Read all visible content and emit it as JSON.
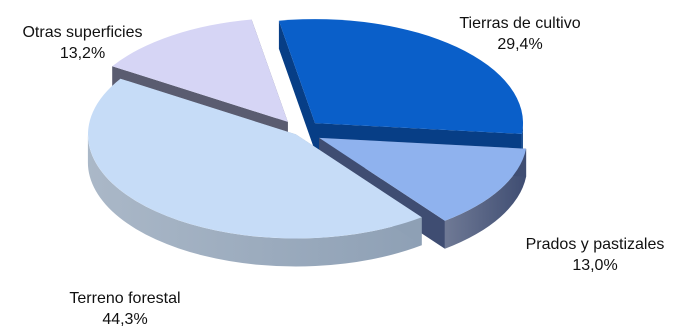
{
  "chart_data": {
    "type": "pie",
    "title": "",
    "slices": [
      {
        "label": "Tierras de cultivo",
        "value_label": "29,4%",
        "value": 29.4,
        "color": "#0a5fc9",
        "side_color": "#073e86"
      },
      {
        "label": "Prados y pastizales",
        "value_label": "13,0%",
        "value": 13.0,
        "color": "#8fb2ee",
        "side_color": "#3f4d72"
      },
      {
        "label": "Terreno forestal",
        "value_label": "44,3%",
        "value": 44.3,
        "color": "#c6dcf7",
        "side_color": "#8ea0b5"
      },
      {
        "label": "Otras superficies",
        "value_label": "13,2%",
        "value": 13.2,
        "color": "#d6d5f5",
        "side_color": "#5a5c70"
      }
    ],
    "style": "3d-exploded",
    "legend": "none"
  }
}
